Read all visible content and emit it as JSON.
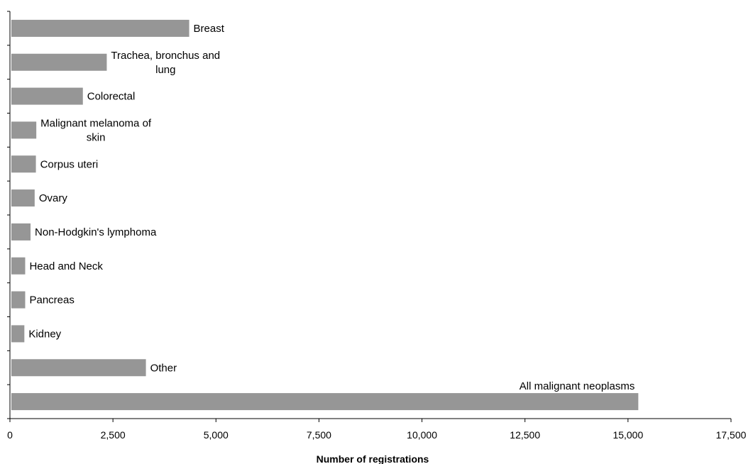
{
  "chart_data": {
    "type": "bar",
    "orientation": "horizontal",
    "title": "",
    "xlabel": "Number of registrations",
    "ylabel": "",
    "xlim": [
      0,
      17500
    ],
    "x_ticks": [
      0,
      2500,
      5000,
      7500,
      10000,
      12500,
      15000,
      17500
    ],
    "x_tick_labels": [
      "0",
      "2,500",
      "5,000",
      "7,500",
      "10,000",
      "12,500",
      "15,000",
      "17,500"
    ],
    "grid": false,
    "legend": "none",
    "bar_color": "#969696",
    "categories": [
      [
        "Breast"
      ],
      [
        "Trachea, bronchus and",
        "lung"
      ],
      [
        "Colorectal"
      ],
      [
        "Malignant melanoma of",
        "skin"
      ],
      [
        "Corpus uteri"
      ],
      [
        "Ovary"
      ],
      [
        "Non-Hodgkin's lymphoma"
      ],
      [
        "Head and Neck"
      ],
      [
        "Pancreas"
      ],
      [
        "Kidney"
      ],
      [
        "Other"
      ],
      [
        "All malignant neoplasms"
      ]
    ],
    "values": [
      4350,
      2350,
      1770,
      640,
      630,
      600,
      500,
      370,
      370,
      350,
      3300,
      15250
    ]
  }
}
